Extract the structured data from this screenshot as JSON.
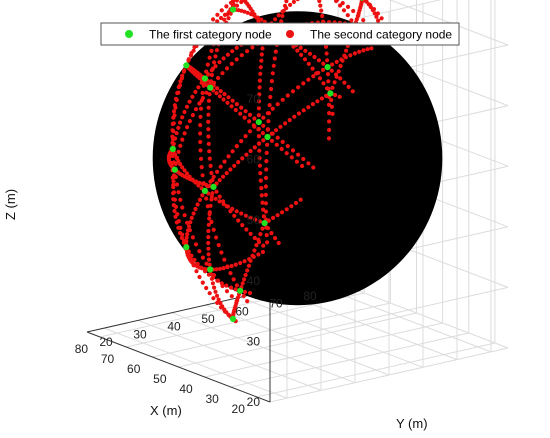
{
  "chart_data": {
    "type": "scatter",
    "title": "",
    "xlabel": "X (m)",
    "ylabel": "Y (m)",
    "zlabel": "Z (m)",
    "xlim": [
      15,
      85
    ],
    "ylim": [
      15,
      85
    ],
    "zlim": [
      20,
      80
    ],
    "x_ticks": [
      "20",
      "30",
      "40",
      "50",
      "60",
      "70",
      "80"
    ],
    "y_ticks": [
      "20",
      "30",
      "40",
      "50",
      "60",
      "70",
      "80"
    ],
    "z_ticks": [
      "20",
      "30",
      "40",
      "50",
      "60",
      "70",
      "80"
    ],
    "grid": true,
    "legend_position": "top",
    "sphere": {
      "center": [
        50,
        50,
        50
      ],
      "radius": 30,
      "face_color": "#000000"
    },
    "series": [
      {
        "name": "The first category node",
        "color": "#22e022",
        "marker": "circle",
        "role": "mesh vertices"
      },
      {
        "name": "The second category node",
        "color": "#ee1111",
        "marker": "circle",
        "role": "points along mesh edges"
      }
    ]
  }
}
